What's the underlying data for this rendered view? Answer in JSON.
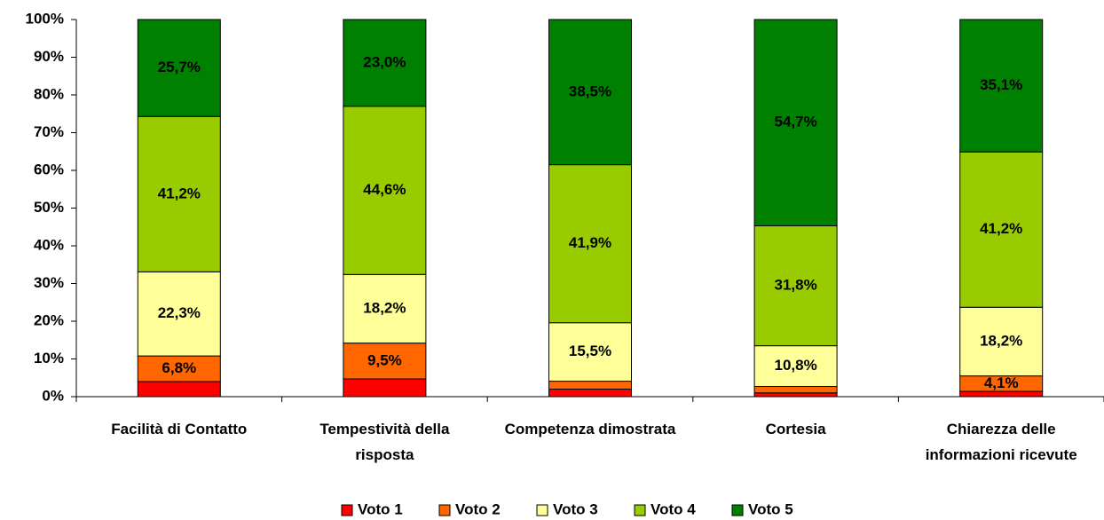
{
  "chart_data": {
    "type": "stacked_bar_100",
    "categories": [
      "Facilità di Contatto",
      "Tempestività della risposta",
      "Competenza dimostrata",
      "Cortesia",
      "Chiarezza delle informazioni ricevute"
    ],
    "series": [
      {
        "name": "Voto 1",
        "color": "#ff0000",
        "values": [
          4.0,
          4.7,
          2.0,
          1.0,
          1.4
        ],
        "value_labels": [
          null,
          null,
          null,
          null,
          null
        ]
      },
      {
        "name": "Voto 2",
        "color": "#ff6600",
        "values": [
          6.8,
          9.5,
          2.1,
          1.7,
          4.1
        ],
        "value_labels": [
          "6,8%",
          "9,5%",
          null,
          null,
          "4,1%"
        ]
      },
      {
        "name": "Voto 3",
        "color": "#ffff99",
        "values": [
          22.3,
          18.2,
          15.5,
          10.8,
          18.2
        ],
        "value_labels": [
          "22,3%",
          "18,2%",
          "15,5%",
          "10,8%",
          "18,2%"
        ]
      },
      {
        "name": "Voto 4",
        "color": "#99cc00",
        "values": [
          41.2,
          44.6,
          41.9,
          31.8,
          41.2
        ],
        "value_labels": [
          "41,2%",
          "44,6%",
          "41,9%",
          "31,8%",
          "41,2%"
        ]
      },
      {
        "name": "Voto 5",
        "color": "#008000",
        "values": [
          25.7,
          23.0,
          38.5,
          54.7,
          35.1
        ],
        "value_labels": [
          "25,7%",
          "23,0%",
          "38,5%",
          "54,7%",
          "35,1%"
        ]
      }
    ],
    "ylim": [
      0,
      100
    ],
    "yticks": [
      {
        "value": 0,
        "label": "0%"
      },
      {
        "value": 10,
        "label": "10%"
      },
      {
        "value": 20,
        "label": "20%"
      },
      {
        "value": 30,
        "label": "30%"
      },
      {
        "value": 40,
        "label": "40%"
      },
      {
        "value": 50,
        "label": "50%"
      },
      {
        "value": 60,
        "label": "60%"
      },
      {
        "value": 70,
        "label": "70%"
      },
      {
        "value": 80,
        "label": "80%"
      },
      {
        "value": 90,
        "label": "90%"
      },
      {
        "value": 100,
        "label": "100%"
      }
    ],
    "legend": "bottom"
  }
}
